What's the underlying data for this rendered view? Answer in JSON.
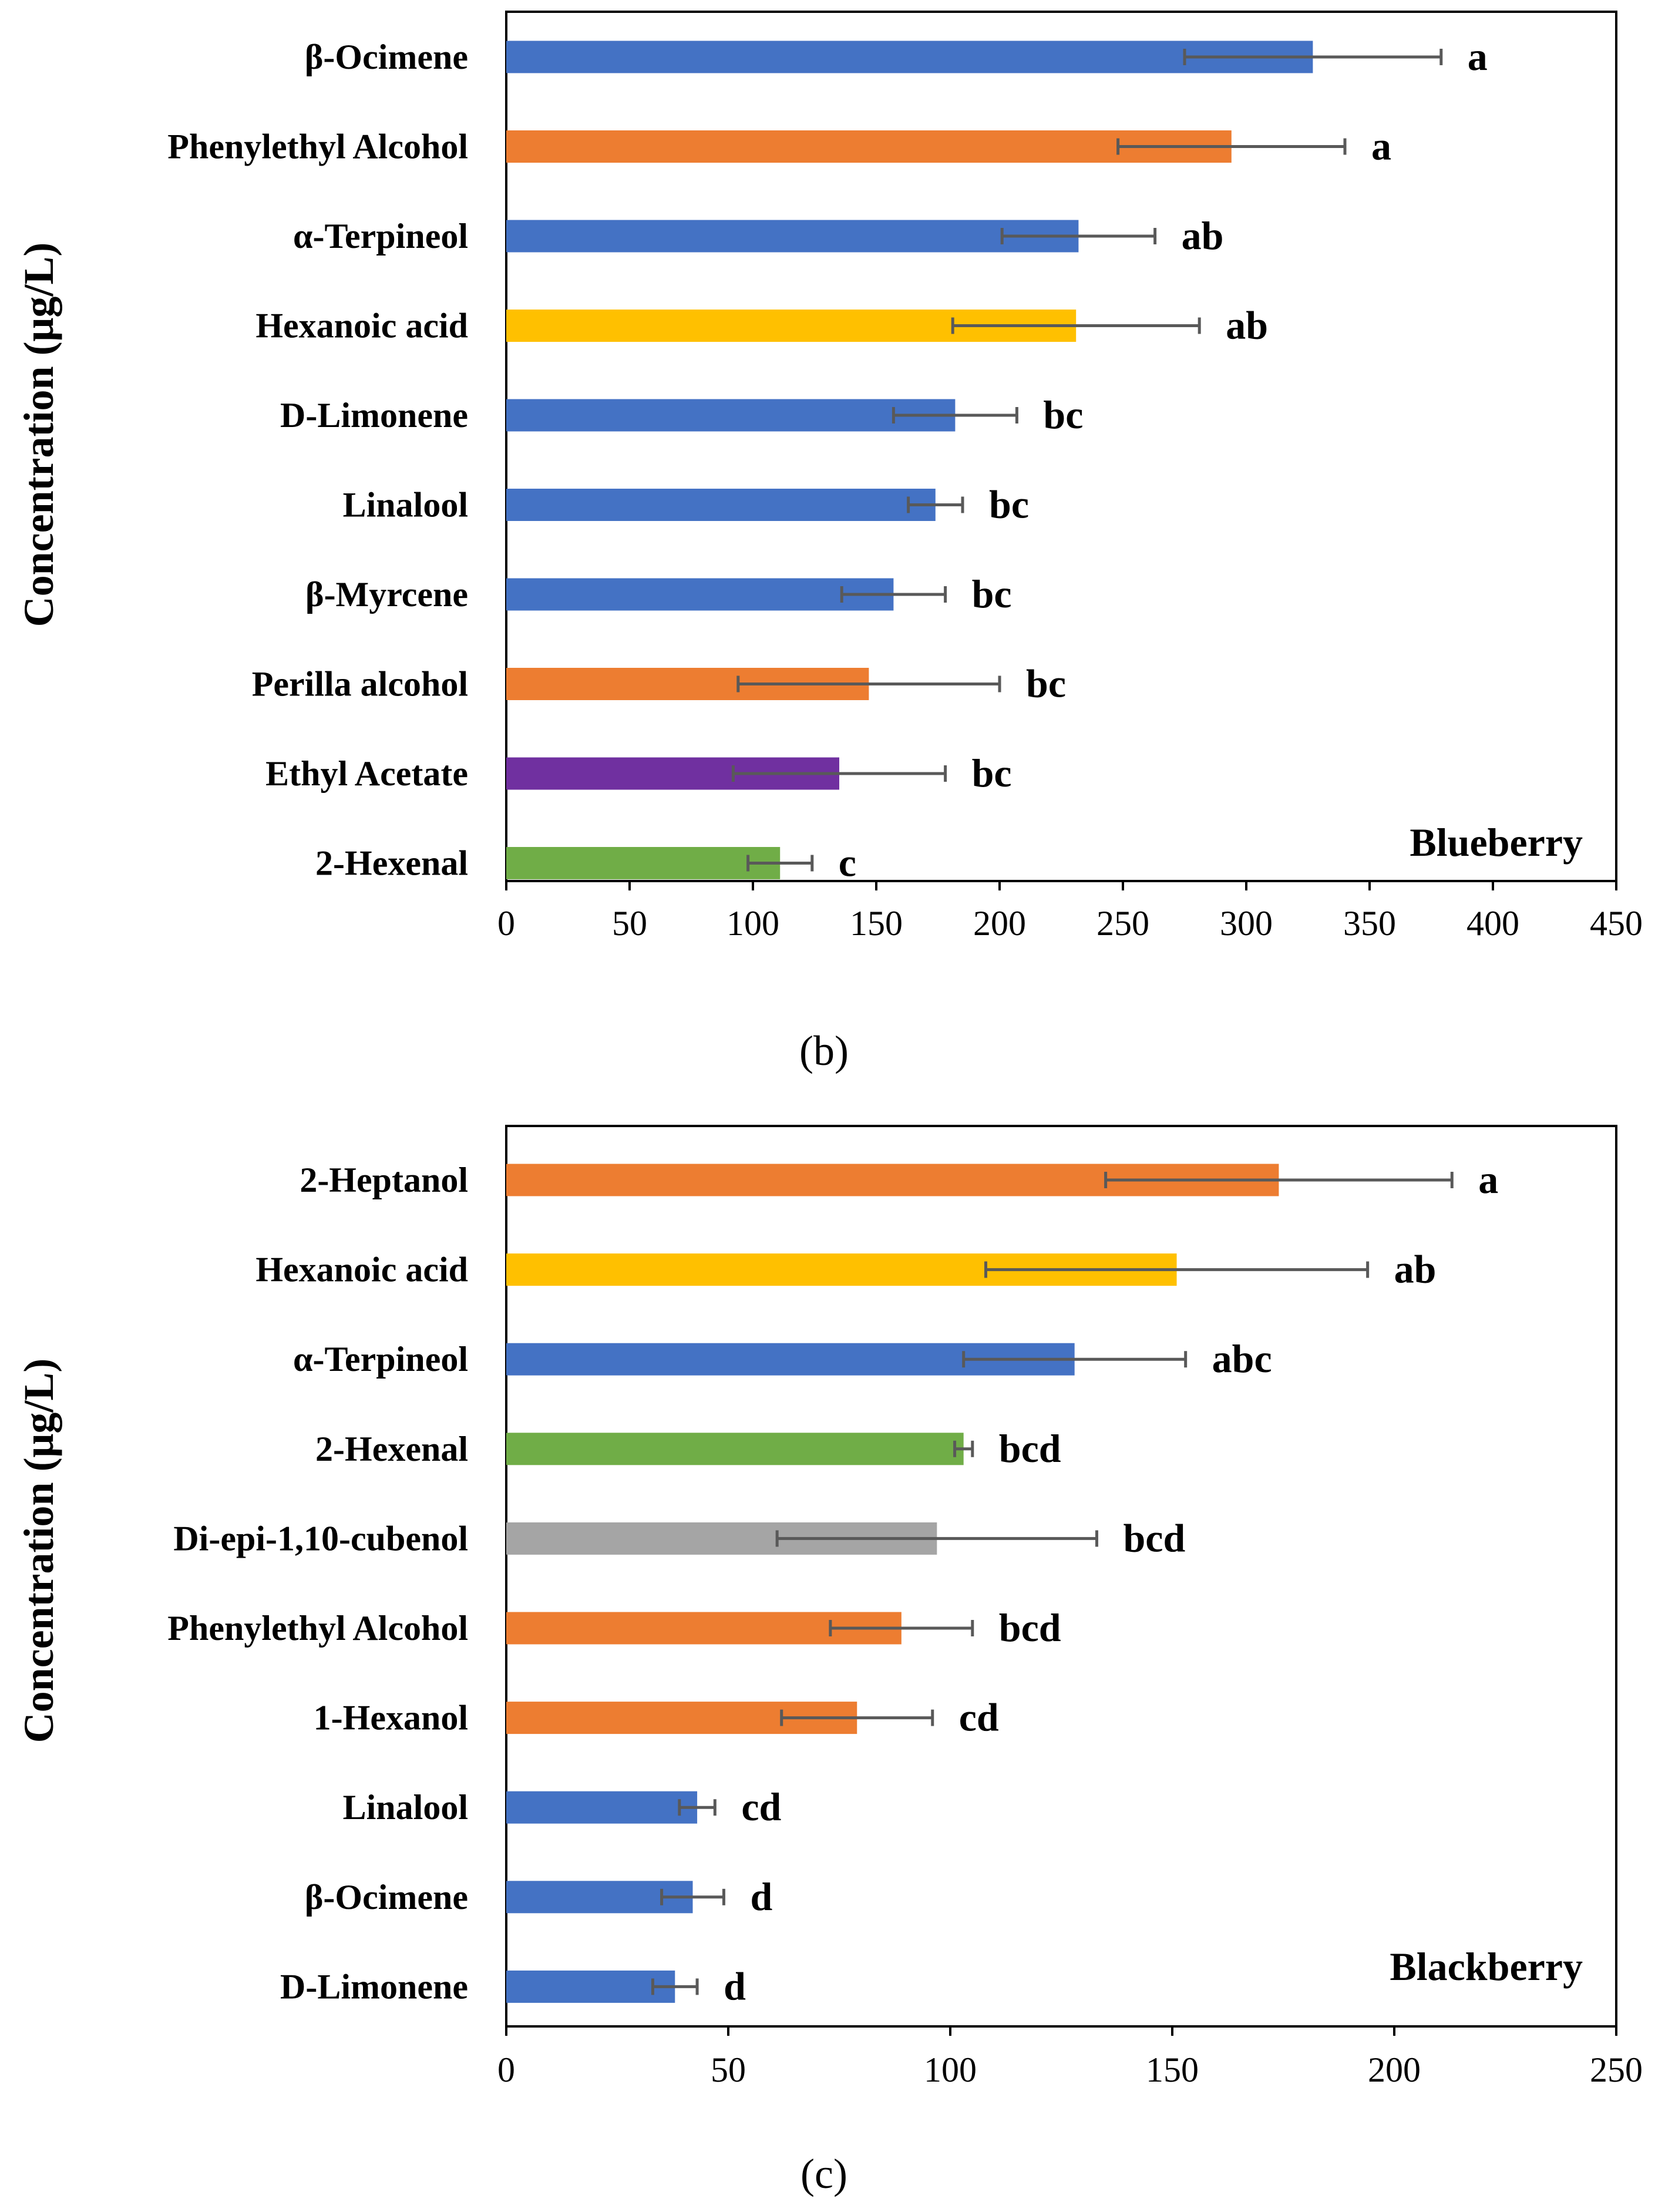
{
  "colors": {
    "blue": "#4472c4",
    "orange": "#ed7d31",
    "yellow": "#ffc000",
    "purple": "#7030a0",
    "green": "#70ad47",
    "gray": "#a5a5a5",
    "error": "#595959"
  },
  "chart_data": [
    {
      "type": "bar",
      "orientation": "horizontal",
      "title": "Blueberry",
      "caption": "(b)",
      "ylabel": "Concentration (μg/L)",
      "xlim": [
        0,
        450
      ],
      "xticks": [
        "0",
        "50",
        "100",
        "150",
        "200",
        "250",
        "300",
        "350",
        "400",
        "450"
      ],
      "categories": [
        "β-Ocimene",
        "Phenylethyl Alcohol",
        "α-Terpineol",
        "Hexanoic acid",
        "D-Limonene",
        "Linalool",
        "β-Myrcene",
        "Perilla alcohol",
        "Ethyl Acetate",
        "2-Hexenal"
      ],
      "values": [
        327,
        294,
        232,
        231,
        182,
        174,
        157,
        147,
        135,
        111
      ],
      "errors": [
        52,
        46,
        31,
        50,
        25,
        11,
        21,
        53,
        43,
        13
      ],
      "letters": [
        "a",
        "a",
        "ab",
        "ab",
        "bc",
        "bc",
        "bc",
        "bc",
        "bc",
        "c"
      ],
      "colors": [
        "blue",
        "orange",
        "blue",
        "yellow",
        "blue",
        "blue",
        "blue",
        "orange",
        "purple",
        "green"
      ]
    },
    {
      "type": "bar",
      "orientation": "horizontal",
      "title": "Blackberry",
      "caption": "(c)",
      "ylabel": "Concentration (μg/L)",
      "xlim": [
        0,
        250
      ],
      "xticks": [
        "0",
        "50",
        "100",
        "150",
        "200",
        "250"
      ],
      "categories": [
        "2-Heptanol",
        "Hexanoic acid",
        "α-Terpineol",
        "2-Hexenal",
        "Di-epi-1,10-cubenol",
        "Phenylethyl Alcohol",
        "1-Hexanol",
        "Linalool",
        "β-Ocimene",
        "D-Limonene"
      ],
      "values": [
        174,
        151,
        128,
        103,
        97,
        89,
        79,
        43,
        42,
        38
      ],
      "errors": [
        39,
        43,
        25,
        2,
        36,
        16,
        17,
        4,
        7,
        5
      ],
      "letters": [
        "a",
        "ab",
        "abc",
        "bcd",
        "bcd",
        "bcd",
        "cd",
        "cd",
        "d",
        "d"
      ],
      "colors": [
        "orange",
        "yellow",
        "blue",
        "green",
        "gray",
        "orange",
        "orange",
        "blue",
        "blue",
        "blue"
      ]
    }
  ]
}
